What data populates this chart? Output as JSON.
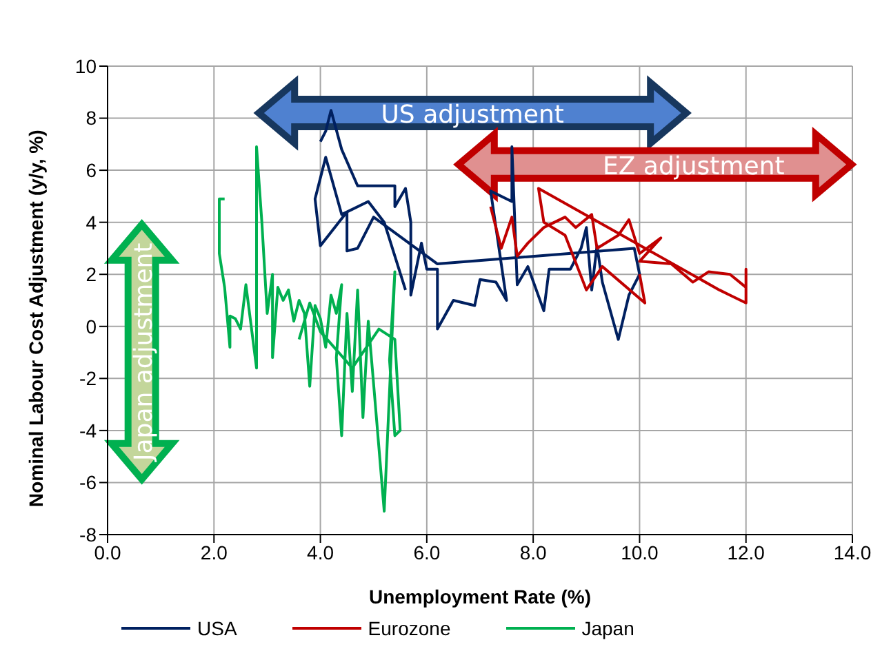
{
  "chart_data": {
    "type": "line",
    "xlabel": "Unemployment Rate (%)",
    "ylabel": "Nominal Labour Cost Adjustment (y/y, %)",
    "xlim": [
      0,
      14
    ],
    "xticks": [
      {
        "value": 0,
        "label": "0.0"
      },
      {
        "value": 2,
        "label": "2.0"
      },
      {
        "value": 4,
        "label": "4.0"
      },
      {
        "value": 6,
        "label": "6.0"
      },
      {
        "value": 8,
        "label": "8.0"
      },
      {
        "value": 10,
        "label": "10.0"
      },
      {
        "value": 12,
        "label": "12.0"
      },
      {
        "value": 14,
        "label": "14.0"
      }
    ],
    "ylim": [
      -8,
      10
    ],
    "yticks": [
      -8,
      -6,
      -4,
      -2,
      0,
      2,
      4,
      6,
      8,
      10
    ],
    "grid": true,
    "legend": "bottom",
    "marker": "none",
    "line_style": "solid",
    "annotations": [
      "US adjustment",
      "EZ adjustment",
      "Japan adjustment"
    ],
    "series": [
      {
        "name": "USA",
        "color": "#002060",
        "x": [
          4.0,
          4.1,
          4.2,
          4.4,
          4.7,
          5.0,
          5.4,
          5.4,
          5.6,
          5.7,
          5.7,
          5.9,
          6.0,
          6.2,
          6.2,
          6.5,
          6.9,
          7.0,
          7.3,
          7.5,
          7.2,
          7.6,
          7.6,
          7.7,
          7.9,
          8.2,
          8.3,
          8.7,
          8.9,
          9.0,
          9.1,
          9.2,
          9.3,
          9.6,
          9.8,
          10.0,
          9.9,
          6.2,
          5.0,
          4.7,
          4.5,
          4.5,
          4.0,
          3.9,
          4.1,
          4.4,
          4.9,
          5.2,
          5.6
        ],
        "values": [
          7.1,
          7.5,
          8.3,
          6.8,
          5.4,
          5.4,
          5.4,
          4.6,
          5.3,
          4.0,
          1.2,
          3.2,
          2.2,
          2.2,
          -0.1,
          1.0,
          0.8,
          1.8,
          1.7,
          1.0,
          5.2,
          4.8,
          6.9,
          1.6,
          2.3,
          0.6,
          2.2,
          2.2,
          3.0,
          3.8,
          1.4,
          3.1,
          1.7,
          -0.5,
          1.2,
          2.0,
          3.0,
          2.4,
          4.2,
          3.0,
          2.9,
          4.4,
          3.1,
          4.9,
          6.5,
          4.3,
          4.8,
          4.0,
          1.4
        ]
      },
      {
        "name": "Eurozone",
        "color": "#c00000",
        "x": [
          7.2,
          7.4,
          7.6,
          7.7,
          7.9,
          8.2,
          8.4,
          8.6,
          8.8,
          9.1,
          9.2,
          9.6,
          9.8,
          10.0,
          10.4,
          10.0,
          10.6,
          11.0,
          11.3,
          11.7,
          12.0,
          12.0,
          12.0,
          11.7,
          11.5,
          8.1,
          8.2,
          8.6,
          9.0,
          9.3,
          10.1,
          10.0
        ],
        "values": [
          4.6,
          3.0,
          4.2,
          2.7,
          3.2,
          3.8,
          4.0,
          4.2,
          3.8,
          4.3,
          3.0,
          3.5,
          4.1,
          2.8,
          3.4,
          2.5,
          2.4,
          1.7,
          2.1,
          2.0,
          1.5,
          2.2,
          0.9,
          1.2,
          1.4,
          5.3,
          4.0,
          3.5,
          1.4,
          2.3,
          0.9,
          2.0
        ]
      },
      {
        "name": "Japan",
        "color": "#00b050",
        "x": [
          2.2,
          2.1,
          2.1,
          2.2,
          2.3,
          2.3,
          2.4,
          2.5,
          2.6,
          2.8,
          2.8,
          2.9,
          3.0,
          3.1,
          3.1,
          3.2,
          3.3,
          3.4,
          3.5,
          3.6,
          3.7,
          3.8,
          3.9,
          4.0,
          4.1,
          4.2,
          4.3,
          4.4,
          4.3,
          4.4,
          4.5,
          4.6,
          4.7,
          4.8,
          4.9,
          5.0,
          5.2,
          5.4,
          5.3,
          5.4,
          5.5,
          5.4,
          5.1,
          4.6,
          4.0,
          3.8,
          3.6
        ],
        "values": [
          4.9,
          4.9,
          2.8,
          1.5,
          -0.8,
          0.4,
          0.3,
          -0.1,
          1.6,
          -1.6,
          6.9,
          4.0,
          0.5,
          2.0,
          -1.2,
          1.5,
          1.0,
          1.4,
          0.2,
          1.0,
          0.5,
          -2.3,
          0.8,
          0.3,
          -0.8,
          1.2,
          0.5,
          1.6,
          -1.2,
          -4.2,
          0.5,
          -2.5,
          1.4,
          -3.5,
          0.2,
          -2.2,
          -7.1,
          2.1,
          -1.3,
          -4.2,
          -4.0,
          -0.5,
          -0.1,
          -1.6,
          -0.2,
          0.9,
          -0.5
        ]
      }
    ]
  }
}
